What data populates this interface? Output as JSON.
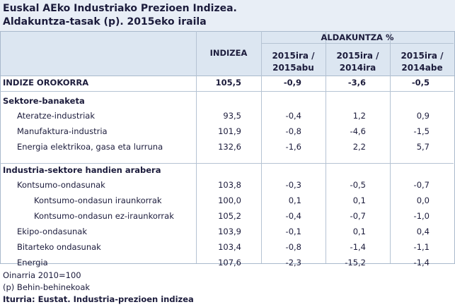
{
  "header": {
    "title": [
      "Euskal AEko Industriako Prezioen Indizea.",
      "Aldakuntza-tasak (p). 2015eko iraila"
    ]
  },
  "table": {
    "columns": {
      "index": "INDIZEA",
      "change_group": "ALDAKUNTZA %",
      "changes": [
        [
          "2015ira /",
          "2015abu"
        ],
        [
          "2015ira /",
          "2014ira"
        ],
        [
          "2015ira /",
          "2014abe"
        ]
      ]
    },
    "total": {
      "label": "INDIZE OROKORRA",
      "values": [
        "105,5",
        "-0,9",
        "-3,6",
        "-0,5"
      ]
    },
    "groups": [
      {
        "title": "Sektore-banaketa",
        "rows": [
          {
            "label": "Ateratze-industriak",
            "values": [
              "93,5",
              "-0,4",
              "1,2",
              "0,9"
            ]
          },
          {
            "label": "Manufaktura-industria",
            "values": [
              "101,9",
              "-0,8",
              "-4,6",
              "-1,5"
            ]
          },
          {
            "label": "Energia elektrikoa, gasa eta lurruna",
            "values": [
              "132,6",
              "-1,6",
              "2,2",
              "5,7"
            ]
          }
        ]
      },
      {
        "title": "Industria-sektore handien arabera",
        "rows": [
          {
            "label": "Kontsumo-ondasunak",
            "values": [
              "103,8",
              "-0,3",
              "-0,5",
              "-0,7"
            ],
            "children": [
              {
                "label": "Kontsumo-ondasun iraunkorrak",
                "values": [
                  "100,0",
                  "0,1",
                  "0,1",
                  "0,0"
                ]
              },
              {
                "label": "Kontsumo-ondasun ez-iraunkorrak",
                "values": [
                  "105,2",
                  "-0,4",
                  "-0,7",
                  "-1,0"
                ]
              }
            ]
          },
          {
            "label": "Ekipo-ondasunak",
            "values": [
              "103,9",
              "-0,1",
              "0,1",
              "0,4"
            ]
          },
          {
            "label": "Bitarteko ondasunak",
            "values": [
              "103,4",
              "-0,8",
              "-1,4",
              "-1,1"
            ]
          },
          {
            "label": "Energia",
            "values": [
              "107,6",
              "-2,3",
              "-15,2",
              "-1,4"
            ]
          }
        ]
      }
    ]
  },
  "footer": {
    "notes": [
      "Oinarria 2010=100",
      "(p) Behin-behinekoak",
      "Iturria: Eustat. Industria-prezioen indizea"
    ]
  }
}
